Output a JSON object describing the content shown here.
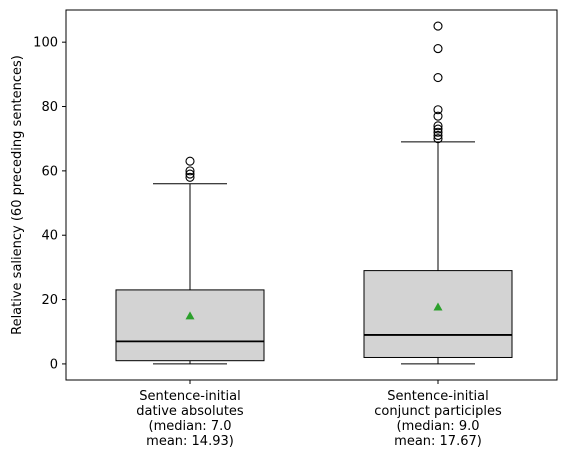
{
  "chart_data": {
    "type": "box",
    "ylabel": "Relative saliency (60 preceding sentences)",
    "ylim": [
      -5,
      110
    ],
    "yticks": [
      0,
      20,
      40,
      60,
      80,
      100
    ],
    "grid": false,
    "categories": [
      [
        "Sentence-initial",
        "dative absolutes",
        "(median: 7.0",
        "mean: 14.93)"
      ],
      [
        "Sentence-initial",
        "conjunct participles",
        "(median: 9.0",
        "mean: 17.67)"
      ]
    ],
    "boxes": [
      {
        "whisker_low": 0,
        "q1": 1,
        "median": 7.0,
        "q3": 23,
        "whisker_high": 56,
        "mean": 14.93,
        "outliers": [
          58,
          59,
          60,
          63
        ]
      },
      {
        "whisker_low": 0,
        "q1": 2,
        "median": 9.0,
        "q3": 29,
        "whisker_high": 69,
        "mean": 17.67,
        "outliers": [
          70,
          71,
          72,
          73,
          74,
          77,
          79,
          89,
          98,
          105
        ]
      }
    ],
    "colors": {
      "box_fill": "#d3d3d3",
      "mean_marker": "#2ca02c",
      "line": "#000000"
    }
  }
}
